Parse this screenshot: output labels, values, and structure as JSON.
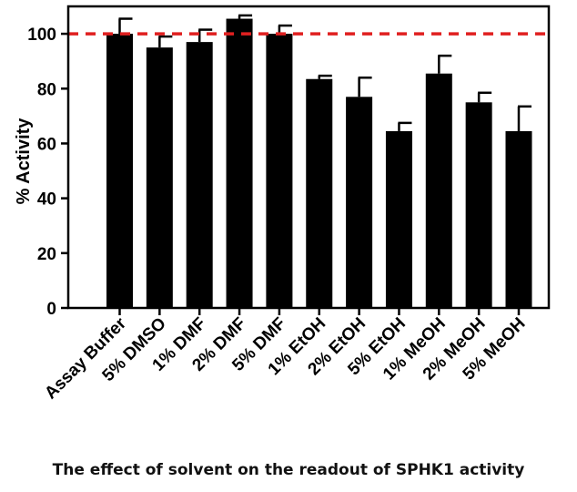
{
  "caption": "The effect of solvent on the readout of SPHK1 activity",
  "chart_data": {
    "type": "bar",
    "ylabel": "% Activity",
    "ylim": [
      0,
      110
    ],
    "yticks": [
      0,
      20,
      40,
      60,
      80,
      100
    ],
    "categories": [
      "Assay Buffer",
      "5% DMSO",
      "1% DMF",
      "2% DMF",
      "5% DMF",
      "1% EtOH",
      "2% EtOH",
      "5% EtOH",
      "1% MeOH",
      "2% MeOH",
      "5% MeOH"
    ],
    "values": [
      100,
      95,
      97,
      105.5,
      100,
      83.5,
      77,
      64.5,
      85.5,
      75,
      64.5
    ],
    "errors": [
      5.5,
      4,
      4.5,
      1.2,
      3,
      1.2,
      7,
      3,
      6.5,
      3.5,
      9
    ],
    "reference_line": 100,
    "colors": {
      "bar": "#000000",
      "reference_line": "#e02020"
    },
    "grid": false
  }
}
